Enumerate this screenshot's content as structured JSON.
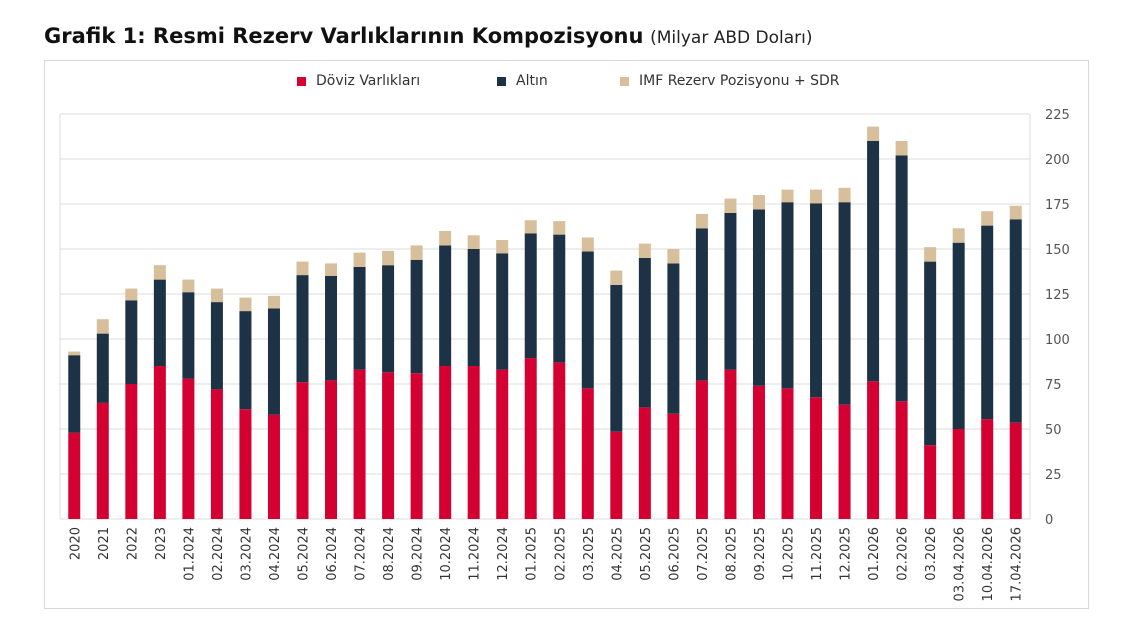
{
  "title": {
    "main": "Grafik 1: Resmi Rezerv Varlıklarının Kompozisyonu",
    "unit": "(Milyar ABD Doları)"
  },
  "chart_data": {
    "type": "bar",
    "stacked": true,
    "categories": [
      "2020",
      "2021",
      "2022",
      "2023",
      "01.2024",
      "02.2024",
      "03.2024",
      "04.2024",
      "05.2024",
      "06.2024",
      "07.2024",
      "08.2024",
      "09.2024",
      "10.2024",
      "11.2024",
      "12.2024",
      "01.2025",
      "02.2025",
      "03.2025",
      "04.2025",
      "05.2025",
      "06.2025",
      "07.2025",
      "08.2025",
      "09.2025",
      "10.2025",
      "11.2025",
      "12.2025",
      "01.2026",
      "02.2026",
      "03.2026",
      "03.04.2026",
      "10.04.2026",
      "17.04.2026"
    ],
    "series": [
      {
        "name": "Döviz Varlıkları",
        "color": "#D50032",
        "values": [
          48,
          64.5,
          75,
          85,
          78,
          72,
          61,
          58,
          76,
          77,
          83,
          81.5,
          81,
          85,
          85,
          83,
          89.4,
          87,
          72.6,
          48.5,
          62,
          58.5,
          77,
          83,
          74,
          72.6,
          67.6,
          63.5,
          76.5,
          65.4,
          41,
          50,
          55.5,
          53.5
        ]
      },
      {
        "name": "Altın",
        "color": "#1E3246",
        "values": [
          43,
          38.5,
          46.5,
          48,
          48,
          48.5,
          54.5,
          59,
          59.5,
          58,
          57,
          59.5,
          63,
          67,
          65,
          64.6,
          69.3,
          71,
          76,
          81.5,
          83,
          83.5,
          84.5,
          87,
          98,
          103.4,
          107.8,
          112.5,
          133.5,
          136.6,
          102,
          103.5,
          107.5,
          113
        ]
      },
      {
        "name": "IMF Rezerv Pozisyonu + SDR",
        "color": "#D6BF9A",
        "values": [
          2,
          8,
          6.5,
          8,
          7,
          7.5,
          7.5,
          7,
          7.5,
          7,
          8,
          8,
          8,
          8,
          7.6,
          7.4,
          7.3,
          7.5,
          7.8,
          8,
          8,
          8,
          8,
          8,
          8,
          7,
          7.6,
          8,
          8,
          8,
          8,
          8,
          8,
          7.5
        ]
      }
    ],
    "ylim": [
      0,
      225
    ],
    "yticks": [
      "0",
      "25",
      "50",
      "75",
      "100",
      "125",
      "150",
      "175",
      "200",
      "225"
    ],
    "y_axis_side": "right",
    "grid": true,
    "legend": "top-center",
    "xlabel": "",
    "ylabel": ""
  }
}
